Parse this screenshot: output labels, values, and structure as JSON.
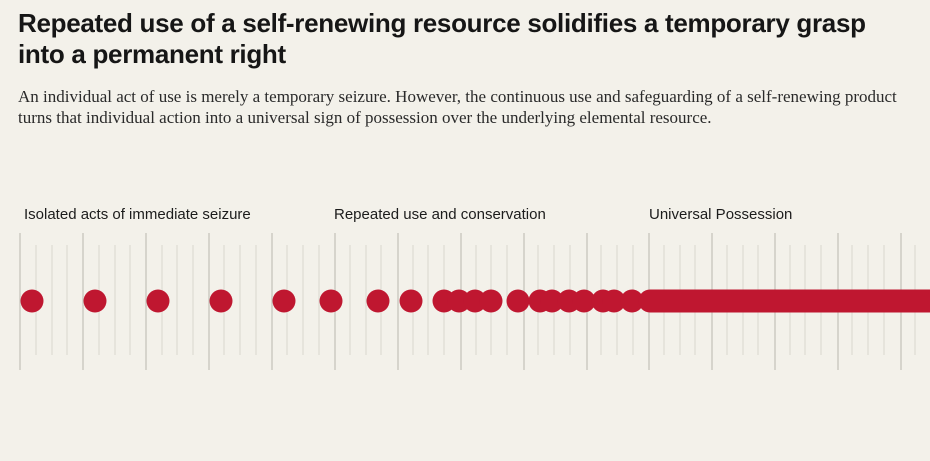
{
  "header": {
    "title": "Repeated use of a self-renewing resource solidifies a temporary grasp into a permanent right",
    "subtitle": "An individual act of use is merely a temporary seizure. However, the continuous use and safeguarding of a self-renewing product turns that individual action into a universal sign of possession over the underlying elemental resource."
  },
  "phases": [
    {
      "label": "Isolated acts of immediate seizure"
    },
    {
      "label": "Repeated use and conservation"
    },
    {
      "label": "Universal Possession"
    }
  ],
  "colors": {
    "background": "#f3f1ea",
    "accent": "#bf1730",
    "tick_major": "#c4c1b8",
    "tick_minor": "#dad7cf",
    "text": "#161616"
  }
}
